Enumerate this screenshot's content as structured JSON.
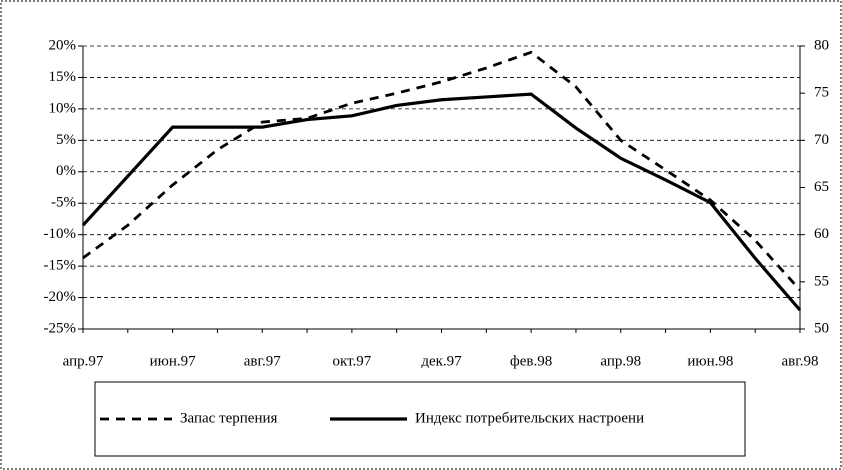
{
  "chart_data": {
    "type": "line",
    "categories": [
      "апр.97",
      null,
      "июн.97",
      null,
      "авг.97",
      null,
      "окт.97",
      null,
      "дек.97",
      null,
      "фев.98",
      null,
      "апр.98",
      null,
      "июн.98",
      null,
      "авг.98"
    ],
    "series": [
      {
        "name": "Запас терпения",
        "color": "#000000",
        "dash": true,
        "values": [
          -13.7,
          -8.5,
          -2.1,
          3.5,
          7.9,
          8.5,
          10.9,
          12.5,
          14.3,
          16.5,
          19.0,
          13.5,
          5.0,
          0.3,
          -4.5,
          -10.9,
          -18.8
        ]
      },
      {
        "name": "Индекс потребительских настроени",
        "color": "#000000",
        "dash": false,
        "axis": "y2",
        "values": [
          61.0,
          66.2,
          71.4,
          71.4,
          71.4,
          72.2,
          72.6,
          73.7,
          74.3,
          74.6,
          74.9,
          71.3,
          68.1,
          65.8,
          63.4,
          57.5,
          52.0
        ]
      }
    ],
    "ylim": [
      -25,
      20
    ],
    "yticks": [
      {
        "value": -25,
        "label": "-25%"
      },
      {
        "value": -20,
        "label": "-20%"
      },
      {
        "value": -15,
        "label": "-15%"
      },
      {
        "value": -10,
        "label": "-10%"
      },
      {
        "value": -5,
        "label": "-5%"
      },
      {
        "value": 0,
        "label": "0%"
      },
      {
        "value": 5,
        "label": "5%"
      },
      {
        "value": 10,
        "label": "10%"
      },
      {
        "value": 15,
        "label": "15%"
      },
      {
        "value": 20,
        "label": "20%"
      }
    ],
    "y2lim": [
      50,
      80
    ],
    "y2ticks": [
      50,
      55,
      60,
      65,
      70,
      75,
      80
    ],
    "grid": true,
    "legend": "bottom"
  }
}
